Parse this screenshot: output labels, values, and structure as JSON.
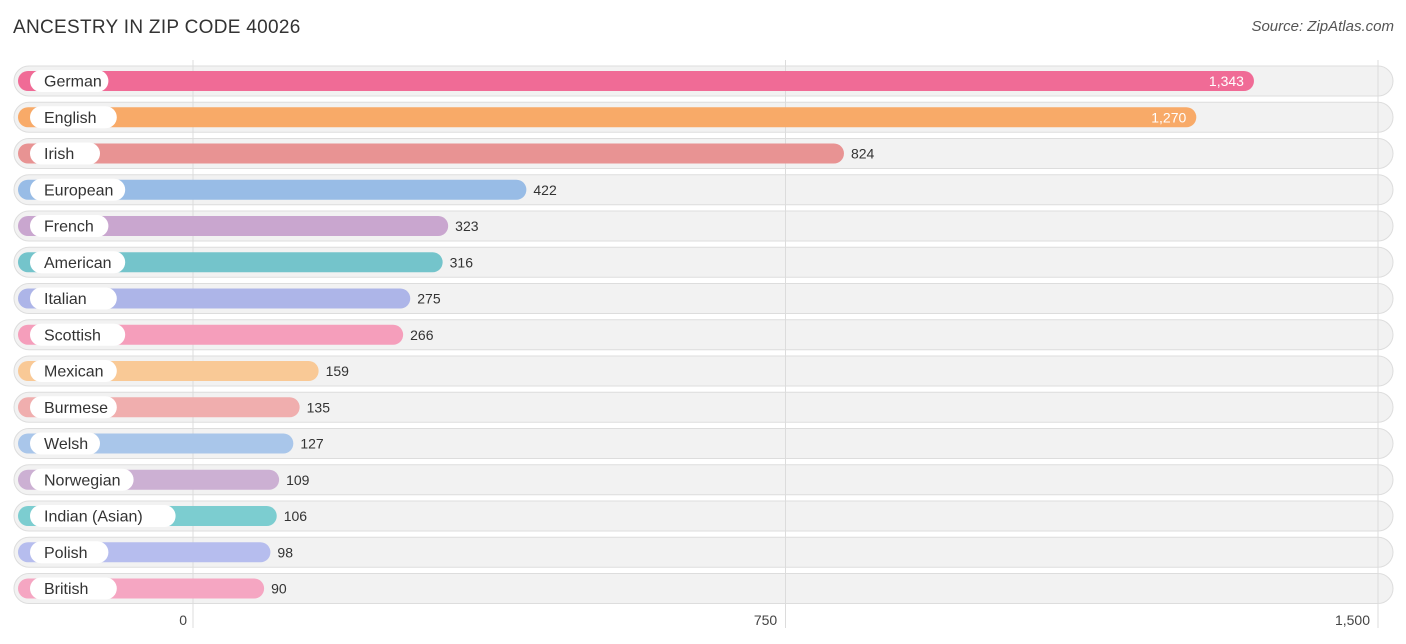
{
  "chart_data": {
    "type": "bar",
    "orientation": "horizontal",
    "title": "ANCESTRY IN ZIP CODE 40026",
    "source": "Source: ZipAtlas.com",
    "categories": [
      "German",
      "English",
      "Irish",
      "European",
      "French",
      "American",
      "Italian",
      "Scottish",
      "Mexican",
      "Burmese",
      "Welsh",
      "Norwegian",
      "Indian (Asian)",
      "Polish",
      "British"
    ],
    "values": [
      1343,
      1270,
      824,
      422,
      323,
      316,
      275,
      266,
      159,
      135,
      127,
      109,
      106,
      98,
      90
    ],
    "value_labels": [
      "1,343",
      "1,270",
      "824",
      "422",
      "323",
      "316",
      "275",
      "266",
      "159",
      "135",
      "127",
      "109",
      "106",
      "98",
      "90"
    ],
    "colors": [
      "#f06b96",
      "#f8aa68",
      "#e89393",
      "#98bce6",
      "#c9a6cf",
      "#74c4cb",
      "#adb5e8",
      "#f59ebb",
      "#f9c996",
      "#f0aeae",
      "#a9c6ea",
      "#ccb0d3",
      "#7ccdd0",
      "#b6bdee",
      "#f5a6c2"
    ],
    "xlim": [
      0,
      1500
    ],
    "xticks": [
      0,
      750,
      1500
    ],
    "xtick_labels": [
      "0",
      "750",
      "1,500"
    ],
    "xlabel": "",
    "ylabel": "",
    "grid": true
  }
}
